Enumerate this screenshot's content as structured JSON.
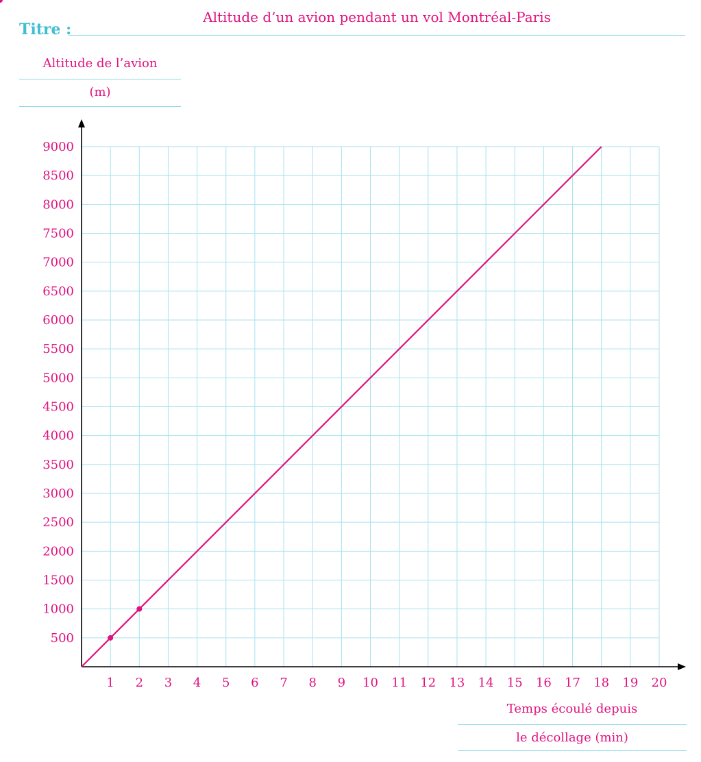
{
  "header": {
    "title_label": "Titre :"
  },
  "chart_data": {
    "type": "line",
    "title": "Altitude d’un avion pendant un vol Montréal-Paris",
    "ylabel_line1": "Altitude de l’avion",
    "ylabel_line2": "(m)",
    "xlabel_line1": "Temps écoulé depuis",
    "xlabel_line2": "le décollage (min)",
    "xlim": [
      0,
      20
    ],
    "ylim": [
      0,
      9000
    ],
    "xticks": [
      1,
      2,
      3,
      4,
      5,
      6,
      7,
      8,
      9,
      10,
      11,
      12,
      13,
      14,
      15,
      16,
      17,
      18,
      19,
      20
    ],
    "yticks": [
      500,
      1000,
      1500,
      2000,
      2500,
      3000,
      3500,
      4000,
      4500,
      5000,
      5500,
      6000,
      6500,
      7000,
      7500,
      8000,
      8500,
      9000
    ],
    "grid": true,
    "series": [
      {
        "x": [
          0,
          1,
          2,
          18
        ],
        "y": [
          0,
          500,
          1000,
          9000
        ],
        "marked_points": [
          1,
          2,
          18
        ]
      }
    ],
    "colors": {
      "line": "#e0127e",
      "grid": "#a8e2ee",
      "axis": "#000000",
      "title_label": "#3fbfd2"
    }
  }
}
